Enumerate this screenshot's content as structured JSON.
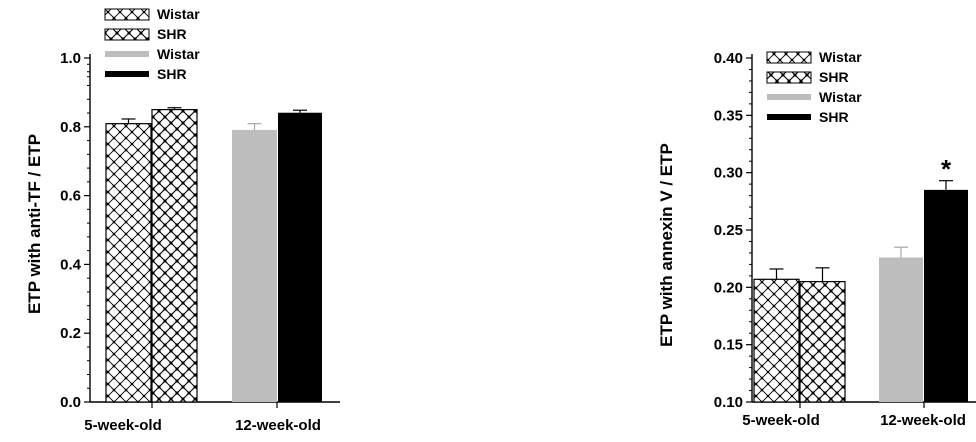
{
  "chart_data": [
    {
      "type": "bar",
      "categories": [
        "5-week-old",
        "12-week-old"
      ],
      "ylabel": "ETP with anti-TF / ETP",
      "ylim": [
        0.0,
        1.1
      ],
      "yticks": [
        "0.0",
        "0.2",
        "0.4",
        "0.6",
        "0.8",
        "1.0"
      ],
      "legend": [
        {
          "label": "Wistar",
          "style": "hatch-light"
        },
        {
          "label": "SHR",
          "style": "hatch-dark"
        },
        {
          "label": "Wistar",
          "style": "solid-gray"
        },
        {
          "label": "SHR",
          "style": "solid-black"
        }
      ],
      "legend_position": "top-left",
      "series": [
        {
          "name": "Wistar",
          "values": [
            0.89,
            0.87
          ],
          "errors": [
            0.015,
            0.02
          ]
        },
        {
          "name": "SHR",
          "values": [
            0.935,
            0.925
          ],
          "errors": [
            0.006,
            0.008
          ]
        }
      ],
      "annotations": []
    },
    {
      "type": "bar",
      "categories": [
        "5-week-old",
        "12-week-old"
      ],
      "ylabel": "ETP with annexin V / ETP",
      "ylim": [
        0.1,
        0.4
      ],
      "yticks": [
        "0.10",
        "0.15",
        "0.20",
        "0.25",
        "0.30",
        "0.35",
        "0.40"
      ],
      "legend": [
        {
          "label": "Wistar",
          "style": "hatch-light"
        },
        {
          "label": "SHR",
          "style": "hatch-dark"
        },
        {
          "label": "Wistar",
          "style": "solid-gray"
        },
        {
          "label": "SHR",
          "style": "solid-black"
        }
      ],
      "legend_position": "top-left",
      "series": [
        {
          "name": "Wistar",
          "values": [
            0.207,
            0.226
          ],
          "errors": [
            0.009,
            0.009
          ]
        },
        {
          "name": "SHR",
          "values": [
            0.205,
            0.285
          ],
          "errors": [
            0.012,
            0.008
          ]
        }
      ],
      "annotations": [
        {
          "text": "*",
          "category": "12-week-old",
          "series": "SHR"
        }
      ]
    }
  ],
  "colors": {
    "gray": "#bdbdbd",
    "black": "#000000"
  }
}
